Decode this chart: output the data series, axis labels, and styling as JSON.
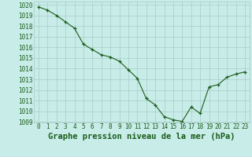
{
  "x": [
    0,
    1,
    2,
    3,
    4,
    5,
    6,
    7,
    8,
    9,
    10,
    11,
    12,
    13,
    14,
    15,
    16,
    17,
    18,
    19,
    20,
    21,
    22,
    23
  ],
  "y": [
    1019.8,
    1019.5,
    1019.0,
    1018.4,
    1017.8,
    1016.3,
    1015.8,
    1015.3,
    1015.1,
    1014.7,
    1013.9,
    1013.1,
    1011.2,
    1010.6,
    1009.5,
    1009.2,
    1009.05,
    1010.4,
    1009.8,
    1012.3,
    1012.5,
    1013.2,
    1013.5,
    1013.7
  ],
  "line_color": "#1a5c1a",
  "marker": "+",
  "bg_color": "#c8ece8",
  "grid_color": "#a8ccc8",
  "xlabel": "Graphe pression niveau de la mer (hPa)",
  "ylim": [
    1009,
    1020
  ],
  "xlim": [
    -0.5,
    23.5
  ],
  "yticks": [
    1009,
    1010,
    1011,
    1012,
    1013,
    1014,
    1015,
    1016,
    1017,
    1018,
    1019,
    1020
  ],
  "xticks": [
    0,
    1,
    2,
    3,
    4,
    5,
    6,
    7,
    8,
    9,
    10,
    11,
    12,
    13,
    14,
    15,
    16,
    17,
    18,
    19,
    20,
    21,
    22,
    23
  ],
  "tick_label_fontsize": 5.5,
  "xlabel_fontsize": 7.5,
  "axis_color": "#1a5c1a"
}
